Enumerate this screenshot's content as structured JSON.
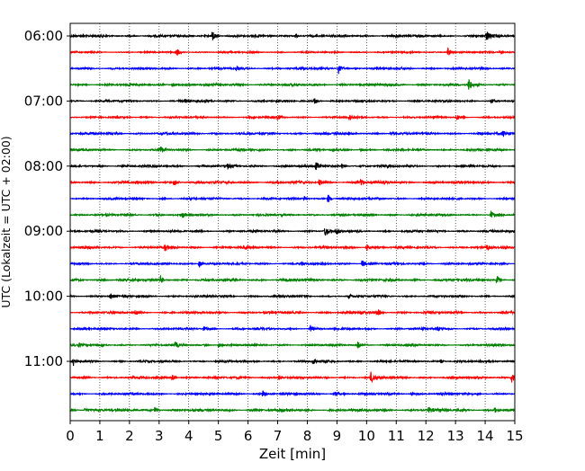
{
  "chart_data": {
    "type": "line",
    "subtype": "helicorder-seismogram",
    "title": "",
    "xlabel": "Zeit  [min]",
    "ylabel": "UTC (Lokalzeit = UTC + 02:00)",
    "xlim": [
      0,
      15
    ],
    "x_ticks": [
      "0",
      "1",
      "2",
      "3",
      "4",
      "5",
      "6",
      "7",
      "8",
      "9",
      "10",
      "11",
      "12",
      "13",
      "14",
      "15"
    ],
    "vertical_grid": true,
    "grid_style": "dotted",
    "trace_colors": [
      "#000000",
      "#ff0000",
      "#0000ff",
      "#008000"
    ],
    "hour_labels": [
      "06:00",
      "07:00",
      "08:00",
      "09:00",
      "10:00",
      "11:00"
    ],
    "rows": [
      {
        "start": "06:00",
        "color": "#000000",
        "noise": 0.5,
        "spikes": [
          {
            "x": 4.8,
            "amp": 1.0
          },
          {
            "x": 14.05,
            "amp": 1.0
          },
          {
            "x": 7.6,
            "amp": 0.35
          },
          {
            "x": 11.0,
            "amp": 0.3
          }
        ]
      },
      {
        "start": "06:15",
        "color": "#ff0000",
        "noise": 0.35,
        "spikes": [
          {
            "x": 3.6,
            "amp": 0.6
          },
          {
            "x": 12.75,
            "amp": 0.8
          },
          {
            "x": 14.5,
            "amp": 0.4
          }
        ]
      },
      {
        "start": "06:30",
        "color": "#0000ff",
        "noise": 0.45,
        "spikes": [
          {
            "x": 9.05,
            "amp": 1.0
          },
          {
            "x": 5.6,
            "amp": 0.35
          }
        ]
      },
      {
        "start": "06:45",
        "color": "#008000",
        "noise": 0.5,
        "spikes": [
          {
            "x": 3.45,
            "amp": 0.5
          },
          {
            "x": 13.45,
            "amp": 1.0
          }
        ]
      },
      {
        "start": "07:00",
        "color": "#000000",
        "noise": 0.45,
        "spikes": [
          {
            "x": 8.25,
            "amp": 0.55
          },
          {
            "x": 14.2,
            "amp": 0.4
          },
          {
            "x": 3.9,
            "amp": 0.3
          }
        ]
      },
      {
        "start": "07:15",
        "color": "#ff0000",
        "noise": 0.4,
        "spikes": [
          {
            "x": 9.4,
            "amp": 0.6
          },
          {
            "x": 7.0,
            "amp": 0.45
          },
          {
            "x": 13.05,
            "amp": 0.4
          }
        ]
      },
      {
        "start": "07:30",
        "color": "#0000ff",
        "noise": 0.5,
        "spikes": [
          {
            "x": 14.6,
            "amp": 0.5
          },
          {
            "x": 10.8,
            "amp": 0.35
          }
        ]
      },
      {
        "start": "07:45",
        "color": "#008000",
        "noise": 0.45,
        "spikes": [
          {
            "x": 3.05,
            "amp": 0.55
          },
          {
            "x": 9.8,
            "amp": 0.3
          }
        ]
      },
      {
        "start": "08:00",
        "color": "#000000",
        "noise": 0.5,
        "spikes": [
          {
            "x": 8.3,
            "amp": 0.8
          },
          {
            "x": 9.15,
            "amp": 0.45
          },
          {
            "x": 5.3,
            "amp": 0.3
          }
        ]
      },
      {
        "start": "08:15",
        "color": "#ff0000",
        "noise": 0.55,
        "spikes": [
          {
            "x": 3.5,
            "amp": 0.7
          },
          {
            "x": 8.4,
            "amp": 0.55
          },
          {
            "x": 9.8,
            "amp": 0.45
          }
        ]
      },
      {
        "start": "08:30",
        "color": "#0000ff",
        "noise": 0.45,
        "spikes": [
          {
            "x": 8.7,
            "amp": 0.75
          },
          {
            "x": 7.9,
            "amp": 0.4
          }
        ]
      },
      {
        "start": "08:45",
        "color": "#008000",
        "noise": 0.45,
        "spikes": [
          {
            "x": 3.75,
            "amp": 0.55
          },
          {
            "x": 14.2,
            "amp": 0.55
          },
          {
            "x": 2.9,
            "amp": 0.3
          }
        ]
      },
      {
        "start": "09:00",
        "color": "#000000",
        "noise": 0.45,
        "spikes": [
          {
            "x": 8.6,
            "amp": 0.85
          },
          {
            "x": 9.0,
            "amp": 0.4
          }
        ]
      },
      {
        "start": "09:15",
        "color": "#ff0000",
        "noise": 0.5,
        "spikes": [
          {
            "x": 3.2,
            "amp": 0.5
          },
          {
            "x": 10.0,
            "amp": 0.6
          },
          {
            "x": 14.05,
            "amp": 0.4
          }
        ]
      },
      {
        "start": "09:30",
        "color": "#0000ff",
        "noise": 0.45,
        "spikes": [
          {
            "x": 4.35,
            "amp": 0.65
          },
          {
            "x": 9.85,
            "amp": 0.7
          },
          {
            "x": 7.8,
            "amp": 0.3
          }
        ]
      },
      {
        "start": "09:45",
        "color": "#008000",
        "noise": 0.55,
        "spikes": [
          {
            "x": 3.05,
            "amp": 0.6
          },
          {
            "x": 14.4,
            "amp": 0.8
          }
        ]
      },
      {
        "start": "10:00",
        "color": "#000000",
        "noise": 0.45,
        "spikes": [
          {
            "x": 1.35,
            "amp": 0.55
          },
          {
            "x": 9.4,
            "amp": 0.35
          }
        ]
      },
      {
        "start": "10:15",
        "color": "#ff0000",
        "noise": 0.5,
        "spikes": [
          {
            "x": 2.2,
            "amp": 0.5
          },
          {
            "x": 10.35,
            "amp": 0.55
          },
          {
            "x": 9.8,
            "amp": 0.35
          }
        ]
      },
      {
        "start": "10:30",
        "color": "#0000ff",
        "noise": 0.45,
        "spikes": [
          {
            "x": 8.1,
            "amp": 0.6
          },
          {
            "x": 12.4,
            "amp": 0.35
          },
          {
            "x": 4.5,
            "amp": 0.3
          }
        ]
      },
      {
        "start": "10:45",
        "color": "#008000",
        "noise": 0.45,
        "spikes": [
          {
            "x": 9.7,
            "amp": 0.75
          },
          {
            "x": 3.55,
            "amp": 0.45
          },
          {
            "x": 5.0,
            "amp": 0.4
          },
          {
            "x": 0.3,
            "amp": 0.35
          }
        ]
      },
      {
        "start": "11:00",
        "color": "#000000",
        "noise": 0.45,
        "spikes": [
          {
            "x": 0.1,
            "amp": 0.75
          },
          {
            "x": 8.2,
            "amp": 0.55
          },
          {
            "x": 12.5,
            "amp": 0.3
          }
        ]
      },
      {
        "start": "11:15",
        "color": "#ff0000",
        "noise": 0.5,
        "spikes": [
          {
            "x": 10.15,
            "amp": 0.9
          },
          {
            "x": 14.9,
            "amp": 0.9
          },
          {
            "x": 3.45,
            "amp": 0.5
          },
          {
            "x": 7.05,
            "amp": 0.4
          }
        ]
      },
      {
        "start": "11:30",
        "color": "#0000ff",
        "noise": 0.5,
        "spikes": [
          {
            "x": 8.9,
            "amp": 0.55
          },
          {
            "x": 6.5,
            "amp": 0.45
          },
          {
            "x": 11.5,
            "amp": 0.3
          }
        ]
      },
      {
        "start": "11:45",
        "color": "#008000",
        "noise": 0.55,
        "spikes": [
          {
            "x": 2.85,
            "amp": 0.6
          },
          {
            "x": 12.1,
            "amp": 0.55
          },
          {
            "x": 14.3,
            "amp": 0.5
          },
          {
            "x": 0.5,
            "amp": 0.4
          }
        ]
      }
    ]
  }
}
